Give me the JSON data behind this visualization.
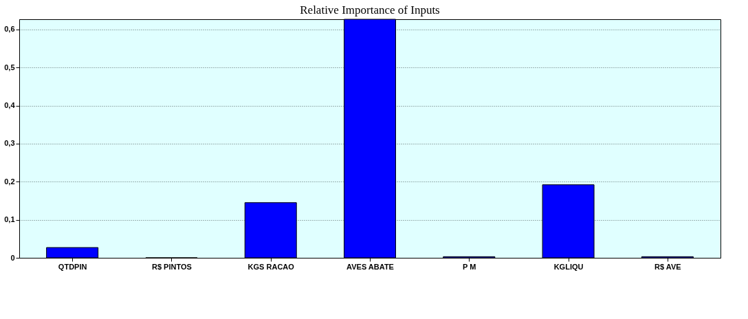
{
  "chart_data": {
    "type": "bar",
    "title": "Relative Importance of Inputs",
    "categories": [
      "QTDPIN",
      "R$ PINTOS",
      "KGS RACAO",
      "AVES ABATE",
      "P M",
      "KGLIQU",
      "R$ AVE"
    ],
    "values": [
      0.027,
      0,
      0.145,
      0.627,
      0.003,
      0.192,
      0.003
    ],
    "color": "#0000ff",
    "ylim": [
      0,
      0.627
    ],
    "yticks": [
      0,
      {
        "value": 0.1,
        "label": "0,1"
      },
      {
        "value": 0.2,
        "label": "0,2"
      },
      {
        "value": 0.3,
        "label": "0,3"
      },
      {
        "value": 0.4,
        "label": "0,4"
      },
      {
        "value": 0.5,
        "label": "0,5"
      },
      {
        "value": 0.6,
        "label": "0,6"
      }
    ],
    "grid": "y"
  }
}
